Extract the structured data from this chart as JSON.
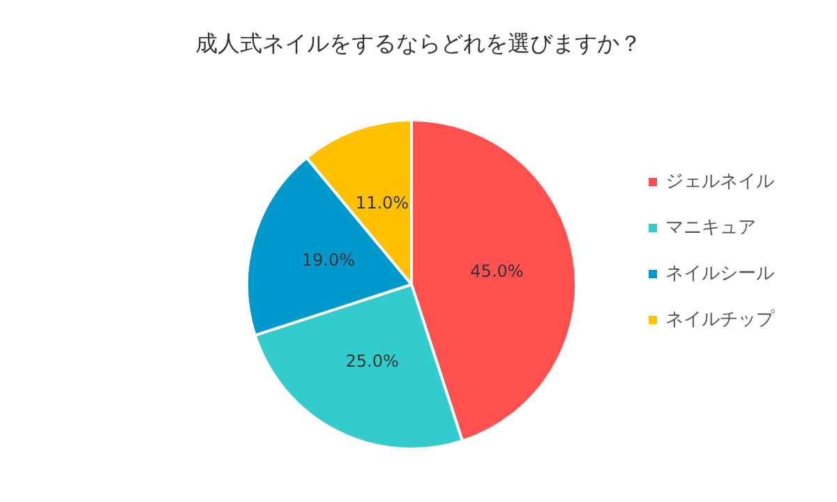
{
  "chart_data": {
    "type": "pie",
    "title": "成人式ネイルをするならどれを選びますか？",
    "categories": [
      "ジェルネイル",
      "マニキュア",
      "ネイルシール",
      "ネイルチップ"
    ],
    "values": [
      45,
      25,
      19,
      11
    ],
    "colors": [
      "#ff5050",
      "#33cccc",
      "#0099cc",
      "#ffc000"
    ],
    "value_labels": [
      "45.0%",
      "25.0%",
      "19.0%",
      "11.0%"
    ],
    "legend": "right"
  }
}
